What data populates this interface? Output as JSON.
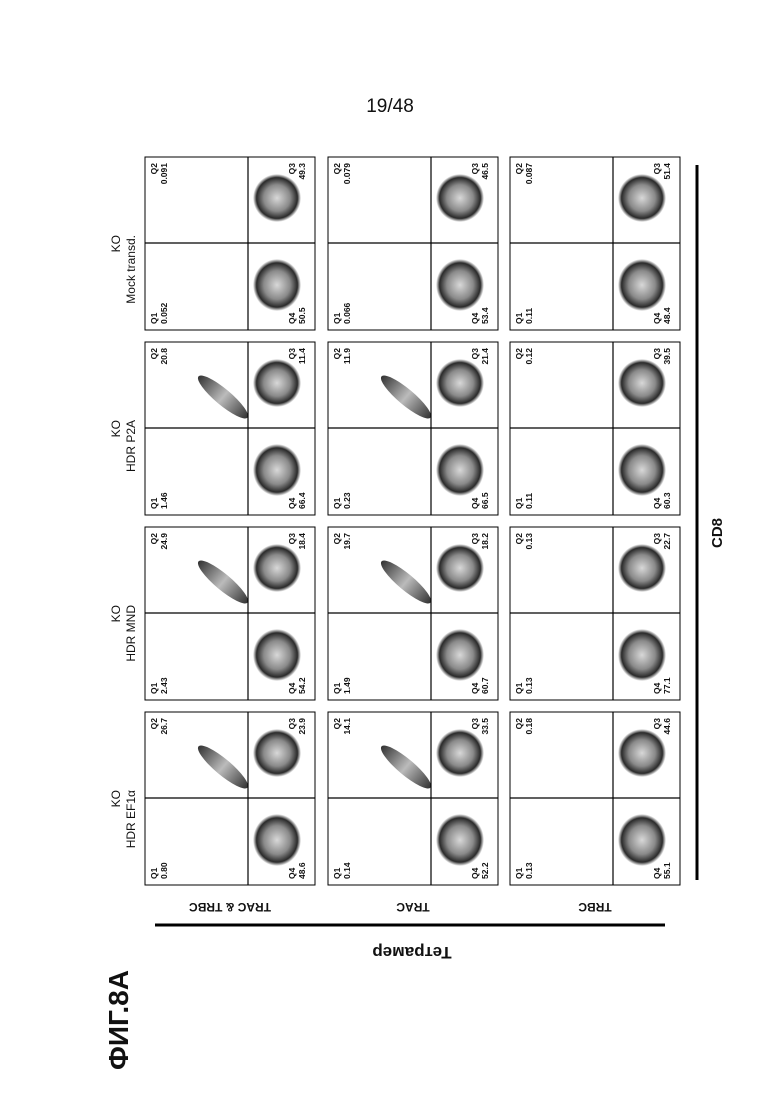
{
  "page_number": "19/48",
  "figure_label": "ФИГ.8А",
  "y_axis_label": "Тетрамер",
  "x_axis_label": "CD8",
  "columns": [
    {
      "line1": "KO",
      "line2": "HDR EF1α"
    },
    {
      "line1": "KO",
      "line2": "HDR MND"
    },
    {
      "line1": "KO",
      "line2": "HDR P2A"
    },
    {
      "line1": "KO",
      "line2": "Mock transd."
    }
  ],
  "rows": [
    {
      "label": "TRAC & TRBC",
      "plots": [
        {
          "quadrants": [
            {
              "label": "Q1",
              "value": "0.80"
            },
            {
              "label": "Q2",
              "value": "26.7"
            },
            {
              "label": "Q3",
              "value": "23.9"
            },
            {
              "label": "Q4",
              "value": "48.6"
            }
          ]
        },
        {
          "quadrants": [
            {
              "label": "Q1",
              "value": "2.43"
            },
            {
              "label": "Q2",
              "value": "24.9"
            },
            {
              "label": "Q3",
              "value": "18.4"
            },
            {
              "label": "Q4",
              "value": "54.2"
            }
          ]
        },
        {
          "quadrants": [
            {
              "label": "Q1",
              "value": "1.46"
            },
            {
              "label": "Q2",
              "value": "20.8"
            },
            {
              "label": "Q3",
              "value": "11.4"
            },
            {
              "label": "Q4",
              "value": "66.4"
            }
          ]
        },
        {
          "quadrants": [
            {
              "label": "Q1",
              "value": "0.052"
            },
            {
              "label": "Q2",
              "value": "0.091"
            },
            {
              "label": "Q3",
              "value": "49.3"
            },
            {
              "label": "Q4",
              "value": "50.5"
            }
          ]
        }
      ]
    },
    {
      "label": "TRAC",
      "plots": [
        {
          "quadrants": [
            {
              "label": "Q1",
              "value": "0.14"
            },
            {
              "label": "Q2",
              "value": "14.1"
            },
            {
              "label": "Q3",
              "value": "33.5"
            },
            {
              "label": "Q4",
              "value": "52.2"
            }
          ]
        },
        {
          "quadrants": [
            {
              "label": "Q1",
              "value": "1.49"
            },
            {
              "label": "Q2",
              "value": "19.7"
            },
            {
              "label": "Q3",
              "value": "18.2"
            },
            {
              "label": "Q4",
              "value": "60.7"
            }
          ]
        },
        {
          "quadrants": [
            {
              "label": "Q1",
              "value": "0.23"
            },
            {
              "label": "Q2",
              "value": "11.9"
            },
            {
              "label": "Q3",
              "value": "21.4"
            },
            {
              "label": "Q4",
              "value": "66.5"
            }
          ]
        },
        {
          "quadrants": [
            {
              "label": "Q1",
              "value": "0.066"
            },
            {
              "label": "Q2",
              "value": "0.079"
            },
            {
              "label": "Q3",
              "value": "46.5"
            },
            {
              "label": "Q4",
              "value": "53.4"
            }
          ]
        }
      ]
    },
    {
      "label": "TRBC",
      "plots": [
        {
          "quadrants": [
            {
              "label": "Q1",
              "value": "0.13"
            },
            {
              "label": "Q2",
              "value": "0.18"
            },
            {
              "label": "Q3",
              "value": "44.6"
            },
            {
              "label": "Q4",
              "value": "55.1"
            }
          ]
        },
        {
          "quadrants": [
            {
              "label": "Q1",
              "value": "0.13"
            },
            {
              "label": "Q2",
              "value": "0.13"
            },
            {
              "label": "Q3",
              "value": "22.7"
            },
            {
              "label": "Q4",
              "value": "77.1"
            }
          ]
        },
        {
          "quadrants": [
            {
              "label": "Q1",
              "value": "0.11"
            },
            {
              "label": "Q2",
              "value": "0.12"
            },
            {
              "label": "Q3",
              "value": "39.5"
            },
            {
              "label": "Q4",
              "value": "60.3"
            }
          ]
        },
        {
          "quadrants": [
            {
              "label": "Q1",
              "value": "0.11"
            },
            {
              "label": "Q2",
              "value": "0.087"
            },
            {
              "label": "Q3",
              "value": "51.4"
            },
            {
              "label": "Q4",
              "value": "48.4"
            }
          ]
        }
      ]
    }
  ]
}
